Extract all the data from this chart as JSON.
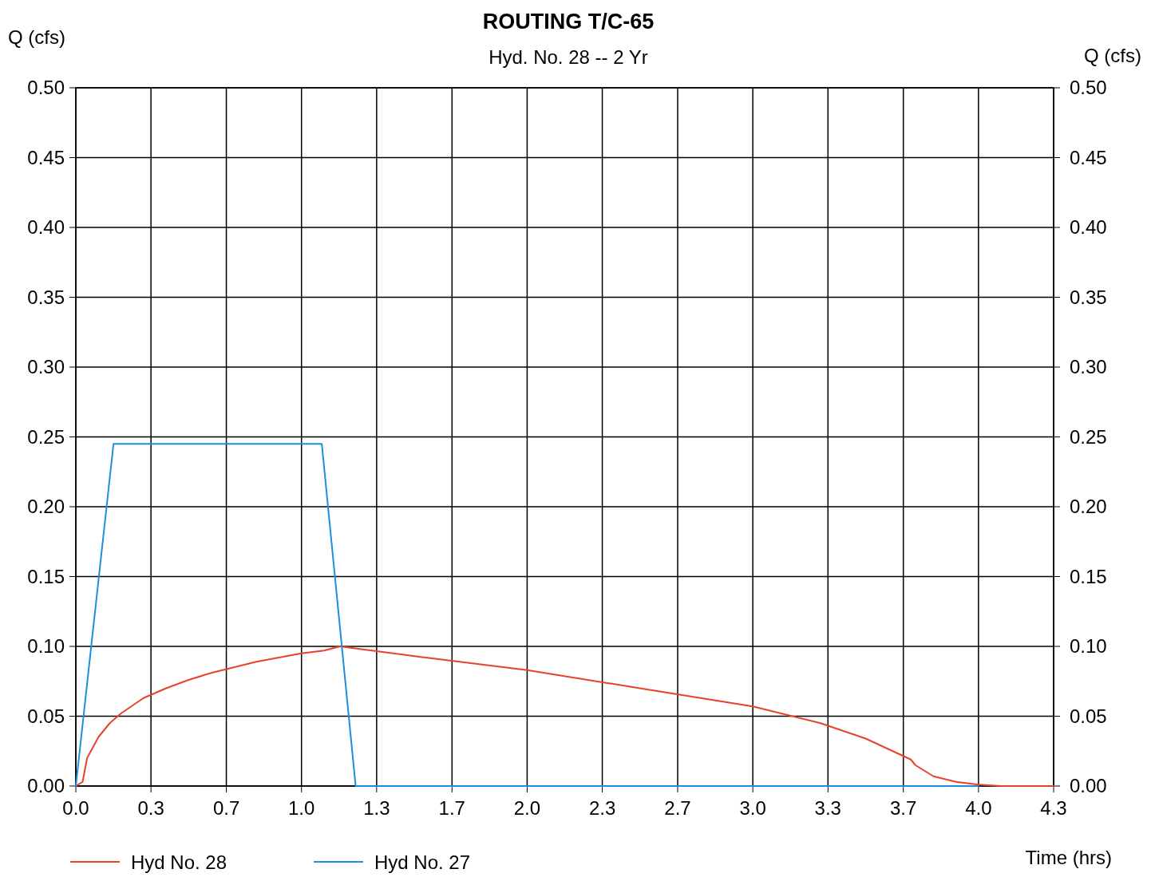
{
  "chart_data": {
    "type": "line",
    "title": "ROUTING T/C-65",
    "subtitle": "Hyd. No. 28 -- 2 Yr",
    "xlabel": "Time (hrs)",
    "ylabel": "Q (cfs)",
    "y2label": "Q (cfs)",
    "xlim": [
      0,
      4.333
    ],
    "xticks": [
      {
        "value": 0,
        "label": "0.0"
      },
      {
        "value": 0.333,
        "label": "0.3"
      },
      {
        "value": 0.667,
        "label": "0.7"
      },
      {
        "value": 1,
        "label": "1.0"
      },
      {
        "value": 1.333,
        "label": "1.3"
      },
      {
        "value": 1.667,
        "label": "1.7"
      },
      {
        "value": 2,
        "label": "2.0"
      },
      {
        "value": 2.333,
        "label": "2.3"
      },
      {
        "value": 2.667,
        "label": "2.7"
      },
      {
        "value": 3,
        "label": "3.0"
      },
      {
        "value": 3.333,
        "label": "3.3"
      },
      {
        "value": 3.667,
        "label": "3.7"
      },
      {
        "value": 4,
        "label": "4.0"
      },
      {
        "value": 4.333,
        "label": "4.3"
      }
    ],
    "ylim": [
      0,
      0.5
    ],
    "yticks": [
      {
        "value": 0,
        "label": "0.00"
      },
      {
        "value": 0.05,
        "label": "0.05"
      },
      {
        "value": 0.1,
        "label": "0.10"
      },
      {
        "value": 0.15,
        "label": "0.15"
      },
      {
        "value": 0.2,
        "label": "0.20"
      },
      {
        "value": 0.25,
        "label": "0.25"
      },
      {
        "value": 0.3,
        "label": "0.30"
      },
      {
        "value": 0.35,
        "label": "0.35"
      },
      {
        "value": 0.4,
        "label": "0.40"
      },
      {
        "value": 0.45,
        "label": "0.45"
      },
      {
        "value": 0.5,
        "label": "0.50"
      }
    ],
    "y2lim": [
      0,
      0.5
    ],
    "y2ticks": [
      {
        "value": 0,
        "label": "0.00"
      },
      {
        "value": 0.05,
        "label": "0.05"
      },
      {
        "value": 0.1,
        "label": "0.10"
      },
      {
        "value": 0.15,
        "label": "0.15"
      },
      {
        "value": 0.2,
        "label": "0.20"
      },
      {
        "value": 0.25,
        "label": "0.25"
      },
      {
        "value": 0.3,
        "label": "0.30"
      },
      {
        "value": 0.35,
        "label": "0.35"
      },
      {
        "value": 0.4,
        "label": "0.40"
      },
      {
        "value": 0.45,
        "label": "0.45"
      },
      {
        "value": 0.5,
        "label": "0.50"
      }
    ],
    "grid": true,
    "legend": "bottom",
    "marker": "none",
    "line_style": "solid",
    "series": [
      {
        "name": "Hyd No. 28",
        "color": "#e8412c",
        "x": [
          0,
          0.03,
          0.05,
          0.1,
          0.15,
          0.2,
          0.3,
          0.4,
          0.5,
          0.6,
          0.7,
          0.8,
          0.9,
          1,
          1.1,
          1.17,
          1.5,
          2,
          2.5,
          3,
          3.3,
          3.5,
          3.7,
          3.72,
          3.8,
          3.9,
          4,
          4.1,
          4.333
        ],
        "values": [
          0,
          0.003,
          0.02,
          0.035,
          0.045,
          0.052,
          0.063,
          0.07,
          0.076,
          0.081,
          0.085,
          0.089,
          0.092,
          0.095,
          0.097,
          0.1,
          0.093,
          0.083,
          0.07,
          0.057,
          0.045,
          0.034,
          0.019,
          0.015,
          0.007,
          0.003,
          0.001,
          0,
          0
        ]
      },
      {
        "name": "Hyd No. 27",
        "color": "#1a8fe0",
        "x": [
          0,
          0.167,
          1.09,
          1.24,
          2,
          3,
          4
        ],
        "values": [
          0,
          0.245,
          0.245,
          0,
          0,
          0,
          0
        ]
      }
    ]
  }
}
